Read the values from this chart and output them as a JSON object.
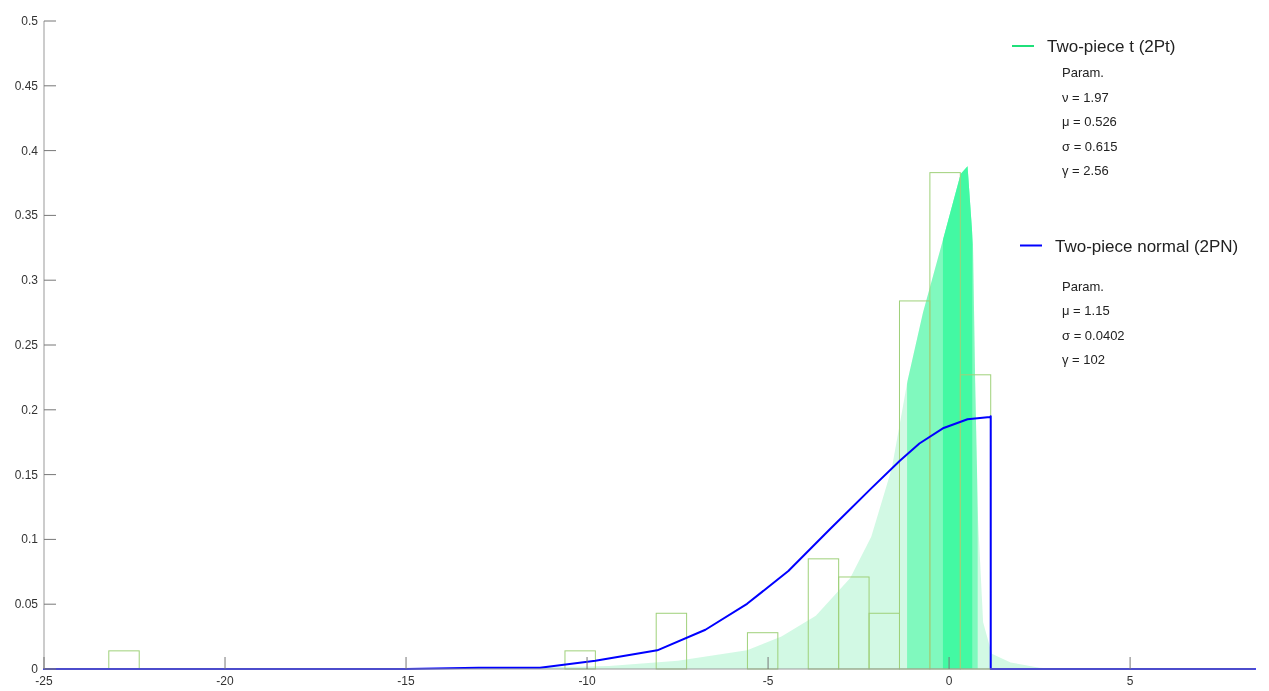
{
  "chart_data": {
    "type": "histogram",
    "color": "#9fd17a",
    "bins": [
      -23.21,
      -22.37,
      -21.53,
      -20.69,
      -19.85,
      -19.01,
      -18.17,
      -17.33,
      -16.49,
      -15.65,
      -14.81,
      -13.97,
      -13.13,
      -12.29,
      -11.45,
      -10.61,
      -9.77,
      -8.93,
      -8.09,
      -7.25,
      -6.41,
      -5.57,
      -4.73,
      -3.89,
      -3.05,
      -2.21,
      -1.37,
      -0.53,
      0.31,
      1.15
    ],
    "values": [
      0.014,
      0,
      0,
      0,
      0,
      0,
      0,
      0,
      0,
      0,
      0,
      0,
      0,
      0,
      0,
      0.014,
      0,
      0,
      0.043,
      0,
      0,
      0.028,
      0,
      0.085,
      0.071,
      0.043,
      0.284,
      0.383,
      0.227
    ],
    "series": [
      {
        "type": "area",
        "name": "Two-piece t (2Pt)",
        "color": "#1fe07a",
        "x": [
          -25,
          -15,
          -12,
          -10,
          -9.39,
          -7.49,
          -5.58,
          -4.63,
          -3.68,
          -2.73,
          -2.15,
          -1.58,
          -1.15,
          -0.72,
          -0.2,
          0.32,
          0.51,
          0.66,
          0.72,
          0.8,
          0.94,
          1.18,
          1.7,
          2.5,
          3,
          8.45
        ],
        "values": [
          0,
          0.0003,
          0.001,
          0.002,
          0.0024,
          0.0064,
          0.0144,
          0.025,
          0.041,
          0.0703,
          0.102,
          0.155,
          0.222,
          0.275,
          0.328,
          0.382,
          0.388,
          0.328,
          0.222,
          0.115,
          0.036,
          0.0117,
          0.005,
          0.001,
          0,
          0
        ]
      },
      {
        "type": "line",
        "name": "Two-piece normal (2PN)",
        "color": "#0000ff",
        "x": [
          -25,
          -15,
          -13,
          -11.3,
          -9.77,
          -8.06,
          -6.73,
          -5.58,
          -4.44,
          -3.3,
          -2.15,
          -1.36,
          -0.82,
          -0.15,
          0.51,
          1.13,
          1.15,
          1.15,
          8.45
        ],
        "values": [
          0,
          0,
          0.001,
          0.001,
          0.0064,
          0.0144,
          0.0303,
          0.0503,
          0.0756,
          0.1076,
          0.1394,
          0.1607,
          0.174,
          0.186,
          0.1927,
          0.1944,
          0.195,
          0,
          0
        ]
      }
    ],
    "bands": [
      {
        "axis": "x",
        "from": -1.16,
        "to": 0.79,
        "color": "#99ffd0"
      },
      {
        "axis": "x",
        "from": -0.17,
        "to": 0.64,
        "color": "#4dffae"
      }
    ],
    "annotations": [
      "Param.",
      "ν = 1.97",
      "μ = 0.526",
      "σ = 0.615",
      "γ = 2.56",
      "Param.",
      "μ = 1.15",
      "σ = 0.0402",
      "γ = 102"
    ],
    "xlim": [
      -25,
      8.45
    ],
    "xticks": [
      -25,
      -20,
      -15,
      -10,
      -5,
      0,
      5
    ],
    "ylim": [
      0,
      0.5
    ],
    "yticks": [
      0,
      0.05,
      0.1,
      0.15,
      0.2,
      0.25,
      0.3,
      0.35,
      0.4,
      0.45,
      0.5
    ],
    "legend": "top right"
  }
}
